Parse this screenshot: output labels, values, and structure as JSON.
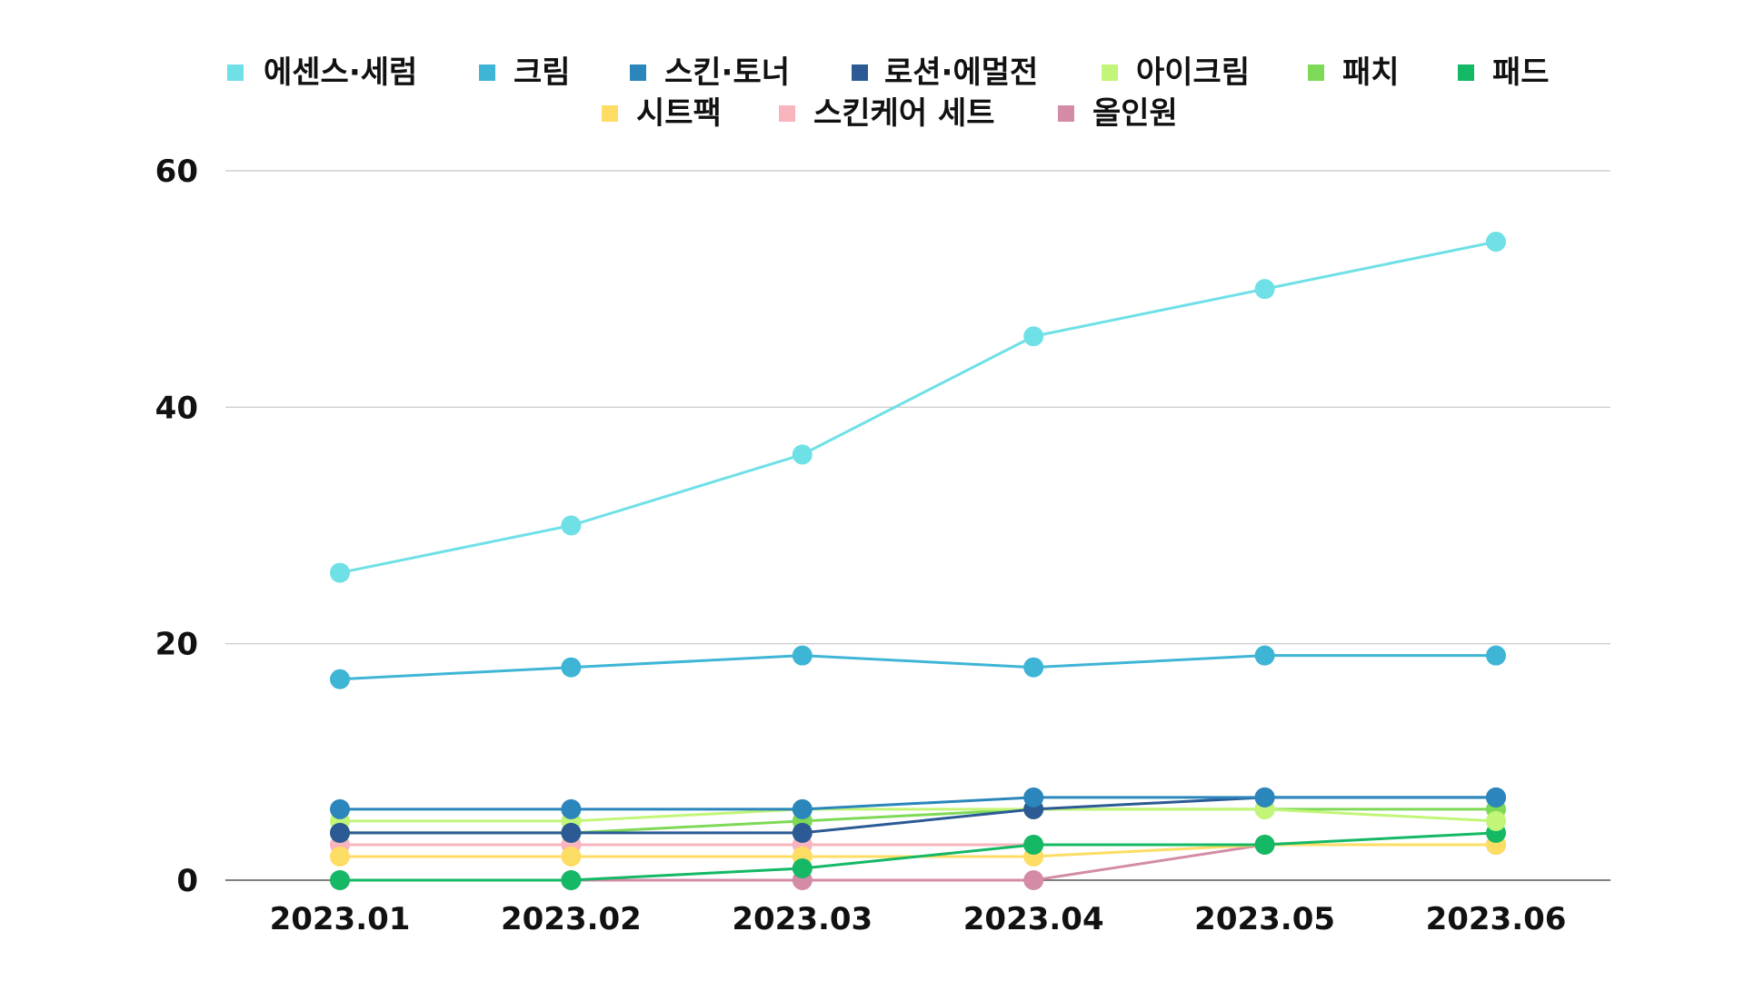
{
  "chart_data": {
    "type": "line",
    "categories": [
      "2023.01",
      "2023.02",
      "2023.03",
      "2023.04",
      "2023.05",
      "2023.06"
    ],
    "ylim": [
      0,
      60
    ],
    "yticks": [
      "0",
      "20",
      "40",
      "60"
    ],
    "grid": true,
    "legend_position": "top",
    "series": [
      {
        "name": "에센스·세럼",
        "color": "#6ee0e6",
        "values": [
          26,
          30,
          36,
          46,
          50,
          54
        ]
      },
      {
        "name": "크림",
        "color": "#3fb5d6",
        "values": [
          17,
          18,
          19,
          18,
          19,
          19
        ]
      },
      {
        "name": "스킨·토너",
        "color": "#2a86bb",
        "values": [
          6,
          6,
          6,
          7,
          7,
          7
        ]
      },
      {
        "name": "로션·에멀전",
        "color": "#2b5a94",
        "values": [
          4,
          4,
          4,
          6,
          7,
          7
        ]
      },
      {
        "name": "아이크림",
        "color": "#c2f578",
        "values": [
          5,
          5,
          6,
          6,
          6,
          5
        ]
      },
      {
        "name": "패치",
        "color": "#7ed957",
        "values": [
          4,
          4,
          5,
          6,
          6,
          6
        ]
      },
      {
        "name": "패드",
        "color": "#14b865",
        "values": [
          0,
          0,
          1,
          3,
          3,
          4
        ]
      },
      {
        "name": "시트팩",
        "color": "#fddd63",
        "values": [
          2,
          2,
          2,
          2,
          3,
          3
        ]
      },
      {
        "name": "스킨케어 세트",
        "color": "#f9b5bd",
        "values": [
          3,
          3,
          3,
          3,
          3,
          3
        ]
      },
      {
        "name": "올인원",
        "color": "#d38ba6",
        "values": [
          0,
          0,
          0,
          0,
          3,
          3
        ]
      }
    ]
  }
}
